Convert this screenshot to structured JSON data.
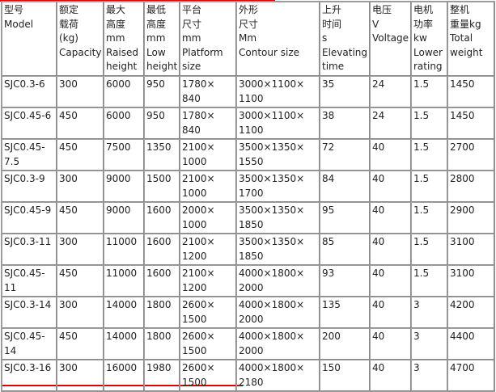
{
  "headers": [
    "型号\nModel",
    "额定\n载荷\n(kg)\nCapacity",
    "最大\n高度\nmm\nRaised\nheight",
    "最低\n高度\nmm\nLow\nheight",
    "平台\n尺寸\nmm\nPlatform\nsize",
    "外形\n尺寸\nMm\nContour size",
    "上升\n时间\ns\nElevating\ntime",
    "电压\nV\nVoltage",
    "电机\n功率\nkw\nLower\nrating",
    "整机\n重量kg\nTotal\nweight"
  ],
  "rows": [
    [
      "SJC0.3-6",
      "300",
      "6000",
      "950",
      "1780×\n840",
      "3000×1100×\n1100",
      "35",
      "24",
      "1.5",
      "1450"
    ],
    [
      "SJC0.45-6",
      "450",
      "6000",
      "950",
      "1780×\n840",
      "3000×1100×\n1100",
      "38",
      "24",
      "1.5",
      "1450"
    ],
    [
      "SJC0.45-\n7.5",
      "450",
      "7500",
      "1350",
      "2100×\n1000",
      "3500×1350×\n1550",
      "72",
      "40",
      "1.5",
      "2700"
    ],
    [
      "SJC0.3-9",
      "300",
      "9000",
      "1500",
      "2100×\n1000",
      "3500×1350×\n1700",
      "84",
      "40",
      "1.5",
      "2800"
    ],
    [
      "SJC0.45-9",
      "450",
      "9000",
      "1600",
      "2000×\n1000",
      "3500×1350×\n1850",
      "95",
      "40",
      "1.5",
      "2900"
    ],
    [
      "SJC0.3-11",
      "300",
      "11000",
      "1600",
      "2100×\n1200",
      "3500×1350×\n1850",
      "85",
      "40",
      "1.5",
      "3100"
    ],
    [
      "SJC0.45-\n11",
      "450",
      "11000",
      "1600",
      "2100×\n1200",
      "4000×1800×\n2000",
      "93",
      "40",
      "1.5",
      "3100"
    ],
    [
      "SJC0.3-14",
      "300",
      "14000",
      "1800",
      "2600×\n1500",
      "4000×1800×\n2000",
      "135",
      "40",
      "3",
      "4200"
    ],
    [
      "SJC0.45-\n14",
      "450",
      "14000",
      "1800",
      "2600×\n1500",
      "4000×1800×\n2000",
      "200",
      "40",
      "3",
      "4400"
    ],
    [
      "SJC0.3-16",
      "300",
      "16000",
      "1980",
      "2600×\n1500",
      "4000×1800×\n2180",
      "150",
      "40",
      "3",
      "4700"
    ]
  ],
  "colors": {
    "rule": "#e00000",
    "border": "#a0a0a0"
  }
}
